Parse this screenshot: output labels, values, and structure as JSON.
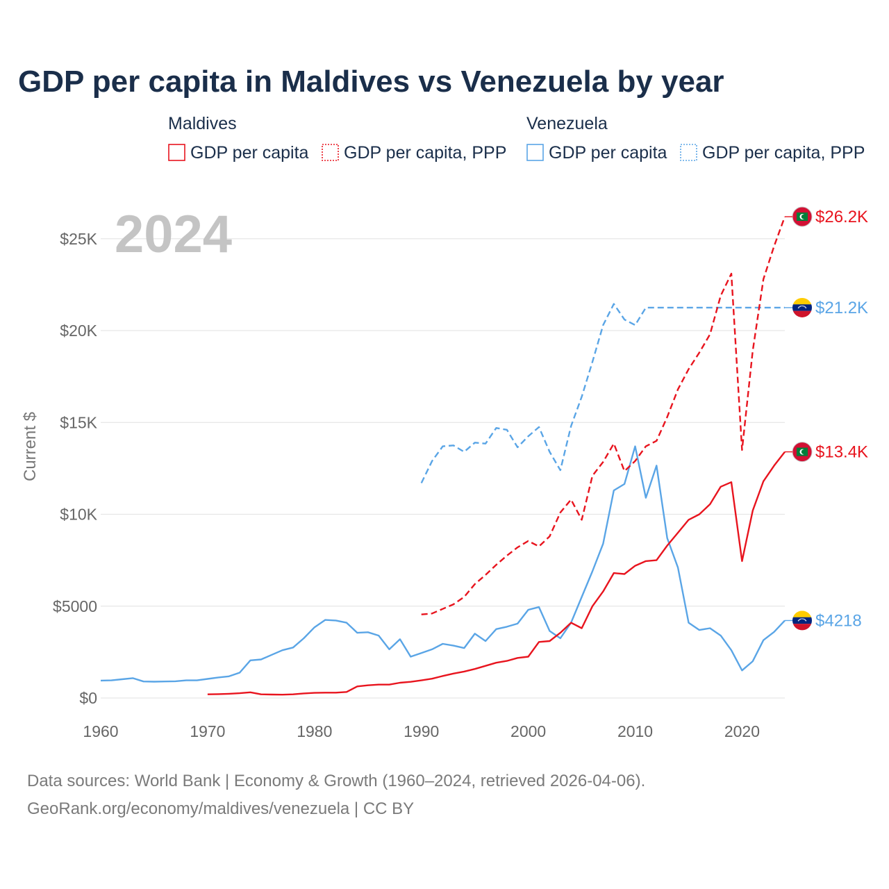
{
  "title": "GDP per capita in Maldives vs Venezuela by year",
  "year_label": "2024",
  "legend": {
    "groups": [
      {
        "name": "Maldives",
        "items": [
          {
            "label": "GDP per capita",
            "color": "#e8141e",
            "style": "solid"
          },
          {
            "label": "GDP per capita, PPP",
            "color": "#e8141e",
            "style": "dotted"
          }
        ]
      },
      {
        "name": "Venezuela",
        "items": [
          {
            "label": "GDP per capita",
            "color": "#5aa5e6",
            "style": "solid"
          },
          {
            "label": "GDP per capita, PPP",
            "color": "#5aa5e6",
            "style": "dotted"
          }
        ]
      }
    ]
  },
  "end_labels": {
    "maldives_ppp": "$26.2K",
    "venezuela_ppp": "$21.2K",
    "maldives_gdp": "$13.4K",
    "venezuela_gdp": "$4218"
  },
  "source": {
    "line1": "Data sources: World Bank | Economy & Growth (1960–2024, retrieved 2026-04-06).",
    "line2": "GeoRank.org/economy/maldives/venezuela | CC BY"
  },
  "chart_data": {
    "type": "line",
    "title": "GDP per capita in Maldives vs Venezuela by year",
    "xlabel": "",
    "ylabel": "Current $",
    "xlim": [
      1960,
      2024
    ],
    "ylim": [
      0,
      26500
    ],
    "x_ticks": [
      1960,
      1970,
      1980,
      1990,
      2000,
      2010,
      2020
    ],
    "x_tick_labels": [
      "1960",
      "1970",
      "1980",
      "1990",
      "2000",
      "2010",
      "2020"
    ],
    "y_ticks": [
      0,
      5000,
      10000,
      15000,
      20000,
      25000
    ],
    "y_tick_labels": [
      "$0",
      "$5000",
      "$10K",
      "$15K",
      "$20K",
      "$25K"
    ],
    "grid": true,
    "series": [
      {
        "id": "venezuela_gdp",
        "name": "Venezuela — GDP per capita",
        "color": "#5aa5e6",
        "dash": "solid",
        "x": [
          1960,
          1961,
          1962,
          1963,
          1964,
          1965,
          1966,
          1967,
          1968,
          1969,
          1970,
          1971,
          1972,
          1973,
          1974,
          1975,
          1976,
          1977,
          1978,
          1979,
          1980,
          1981,
          1982,
          1983,
          1984,
          1985,
          1986,
          1987,
          1988,
          1989,
          1990,
          1991,
          1992,
          1993,
          1994,
          1995,
          1996,
          1997,
          1998,
          1999,
          2000,
          2001,
          2002,
          2003,
          2004,
          2005,
          2006,
          2007,
          2008,
          2009,
          2010,
          2011,
          2012,
          2013,
          2014,
          2015,
          2016,
          2017,
          2018,
          2019,
          2020,
          2021,
          2022,
          2023,
          2024
        ],
        "values": [
          950,
          960,
          1020,
          1080,
          900,
          890,
          900,
          910,
          960,
          960,
          1040,
          1120,
          1180,
          1380,
          2050,
          2100,
          2350,
          2600,
          2750,
          3250,
          3850,
          4250,
          4220,
          4100,
          3550,
          3580,
          3400,
          2650,
          3200,
          2250,
          2450,
          2650,
          2950,
          2850,
          2720,
          3500,
          3100,
          3750,
          3880,
          4050,
          4800,
          4950,
          3650,
          3250,
          4100,
          5500,
          6900,
          8400,
          11300,
          11650,
          13700,
          10900,
          12650,
          8700,
          7100,
          4100,
          3700,
          3800,
          3400,
          2600,
          1500,
          2000,
          3150,
          3600,
          4218
        ]
      },
      {
        "id": "venezuela_ppp",
        "name": "Venezuela — GDP per capita, PPP",
        "color": "#5aa5e6",
        "dash": "dashed",
        "x": [
          1990,
          1991,
          1992,
          1993,
          1994,
          1995,
          1996,
          1997,
          1998,
          1999,
          2000,
          2001,
          2002,
          2003,
          2004,
          2005,
          2006,
          2007,
          2008,
          2009,
          2010,
          2011,
          2024
        ],
        "values": [
          11700,
          12900,
          13700,
          13750,
          13400,
          13900,
          13850,
          14700,
          14600,
          13650,
          14250,
          14750,
          13400,
          12400,
          14800,
          16400,
          18300,
          20300,
          21450,
          20600,
          20300,
          21250,
          21250
        ]
      },
      {
        "id": "maldives_gdp",
        "name": "Maldives — GDP per capita",
        "color": "#e8141e",
        "dash": "solid",
        "x": [
          1970,
          1971,
          1972,
          1973,
          1974,
          1975,
          1976,
          1977,
          1978,
          1979,
          1980,
          1981,
          1982,
          1983,
          1984,
          1985,
          1986,
          1987,
          1988,
          1989,
          1990,
          1991,
          1992,
          1993,
          1994,
          1995,
          1996,
          1997,
          1998,
          1999,
          2000,
          2001,
          2002,
          2003,
          2004,
          2005,
          2006,
          2007,
          2008,
          2009,
          2010,
          2011,
          2012,
          2013,
          2014,
          2015,
          2016,
          2017,
          2018,
          2019,
          2020,
          2021,
          2022,
          2023,
          2024
        ],
        "values": [
          200,
          210,
          230,
          260,
          310,
          200,
          190,
          180,
          200,
          250,
          280,
          290,
          290,
          330,
          630,
          690,
          730,
          730,
          830,
          880,
          960,
          1050,
          1200,
          1330,
          1440,
          1580,
          1750,
          1920,
          2020,
          2180,
          2250,
          3050,
          3100,
          3550,
          4100,
          3800,
          5000,
          5800,
          6800,
          6750,
          7200,
          7450,
          7500,
          8300,
          9000,
          9700,
          10000,
          10550,
          11500,
          11750,
          7450,
          10200,
          11800,
          12650,
          13400
        ]
      },
      {
        "id": "maldives_ppp",
        "name": "Maldives — GDP per capita, PPP",
        "color": "#e8141e",
        "dash": "dashed",
        "x": [
          1990,
          1991,
          1992,
          1993,
          1994,
          1995,
          1996,
          1997,
          1998,
          1999,
          2000,
          2001,
          2002,
          2003,
          2004,
          2005,
          2006,
          2007,
          2008,
          2009,
          2010,
          2011,
          2012,
          2013,
          2014,
          2015,
          2016,
          2017,
          2018,
          2019,
          2020,
          2021,
          2022,
          2023,
          2024
        ],
        "values": [
          4550,
          4600,
          4850,
          5100,
          5500,
          6200,
          6700,
          7250,
          7750,
          8200,
          8550,
          8250,
          8800,
          10100,
          10800,
          9700,
          12100,
          12850,
          13850,
          12350,
          12900,
          13700,
          14000,
          15300,
          16800,
          17900,
          18800,
          19800,
          21900,
          23100,
          13500,
          18900,
          22800,
          24600,
          26200
        ]
      }
    ]
  }
}
